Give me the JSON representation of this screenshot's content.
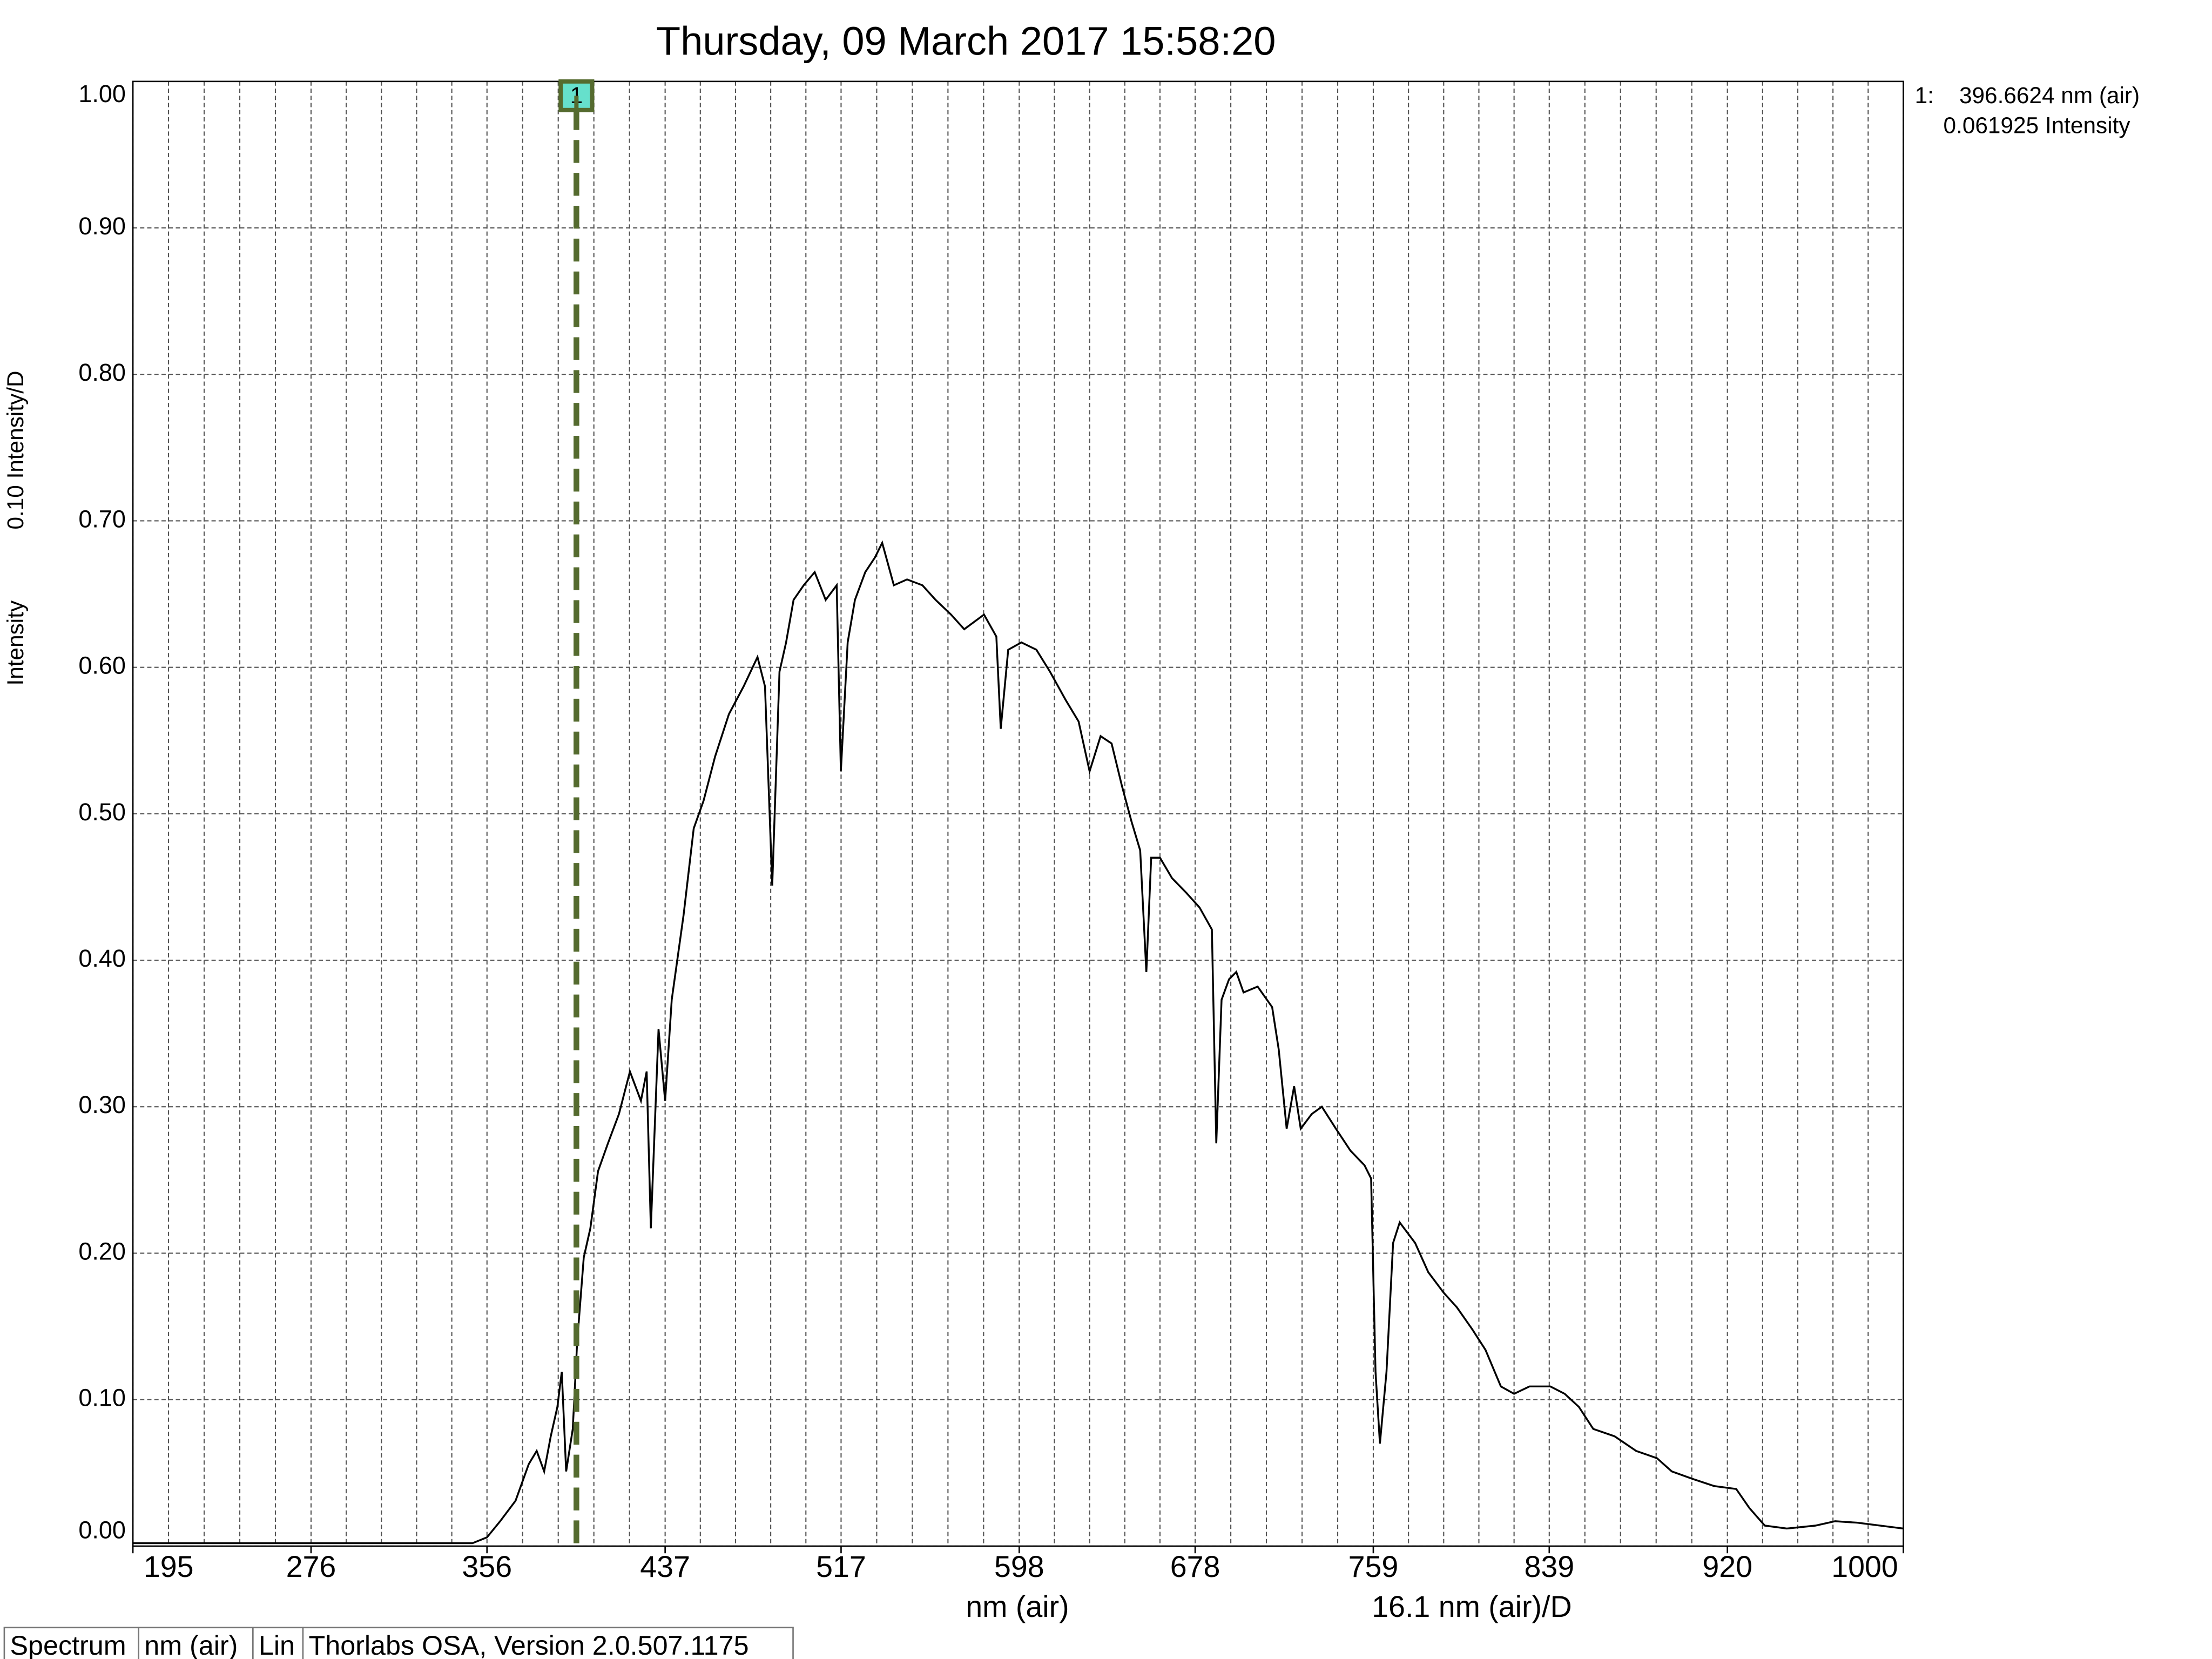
{
  "chart_data": {
    "type": "line",
    "title": "Thursday, 09 March 2017 15:58:20",
    "x_label": "nm (air)",
    "x_division_label": "16.1 nm (air)/D",
    "y_label": "Intensity",
    "y_division_label": "0.10 Intensity/D",
    "xlim": [
      195,
      1000
    ],
    "ylim": [
      0,
      1
    ],
    "xticks": [
      195,
      276,
      356,
      437,
      517,
      598,
      678,
      759,
      839,
      920,
      1000
    ],
    "yticks": [
      {
        "value": 0,
        "label": "0.00"
      },
      {
        "value": 0.1,
        "label": "0.10"
      },
      {
        "value": 0.2,
        "label": "0.20"
      },
      {
        "value": 0.3,
        "label": "0.30"
      },
      {
        "value": 0.4,
        "label": "0.40"
      },
      {
        "value": 0.5,
        "label": "0.50"
      },
      {
        "value": 0.6,
        "label": "0.60"
      },
      {
        "value": 0.7,
        "label": "0.70"
      },
      {
        "value": 0.8,
        "label": "0.80"
      },
      {
        "value": 0.9,
        "label": "0.90"
      },
      {
        "value": 1,
        "label": "1.00"
      }
    ],
    "grid": true,
    "x": [
      195,
      349.4,
      356,
      362,
      369,
      375,
      378.6,
      382,
      385,
      388,
      390,
      392,
      395,
      397,
      400,
      403,
      406.5,
      411,
      416,
      421,
      426,
      428.6,
      430.5,
      434,
      437,
      440,
      445.4,
      450,
      454.5,
      459.7,
      466,
      472.7,
      479,
      482.4,
      485.7,
      489,
      492,
      495.4,
      500,
      505,
      510,
      515,
      516.9,
      520,
      523.3,
      528,
      532.4,
      535.7,
      541,
      547,
      554,
      560,
      567,
      573,
      582,
      587.6,
      589.6,
      593,
      599,
      605.8,
      612,
      619,
      625,
      630,
      635,
      640,
      644.7,
      649,
      653,
      655.8,
      658,
      662,
      667.5,
      674,
      680,
      685.6,
      687.6,
      690,
      693.4,
      696.7,
      700,
      706.4,
      713,
      716,
      719.6,
      723,
      726,
      731,
      735.6,
      742,
      748.6,
      755,
      758,
      760,
      762,
      765,
      768,
      771,
      778,
      784,
      791,
      797,
      804,
      810,
      817,
      823,
      830,
      839.5,
      846,
      852.5,
      859,
      868.7,
      878.5,
      888,
      894.7,
      904,
      914,
      924,
      930,
      937,
      947,
      960,
      969,
      979,
      1000
    ],
    "series": [
      {
        "name": "Spectrum",
        "color": "#000000",
        "values": [
          0.002,
          0.002,
          0.006,
          0.017,
          0.031,
          0.056,
          0.065,
          0.051,
          0.075,
          0.095,
          0.119,
          0.051,
          0.08,
          0.139,
          0.197,
          0.217,
          0.256,
          0.275,
          0.295,
          0.324,
          0.304,
          0.324,
          0.217,
          0.353,
          0.304,
          0.373,
          0.431,
          0.49,
          0.509,
          0.539,
          0.568,
          0.587,
          0.607,
          0.587,
          0.451,
          0.597,
          0.617,
          0.646,
          0.656,
          0.665,
          0.646,
          0.656,
          0.529,
          0.617,
          0.646,
          0.665,
          0.675,
          0.685,
          0.656,
          0.66,
          0.656,
          0.646,
          0.636,
          0.626,
          0.636,
          0.621,
          0.558,
          0.612,
          0.617,
          0.612,
          0.597,
          0.578,
          0.563,
          0.529,
          0.553,
          0.548,
          0.519,
          0.495,
          0.475,
          0.392,
          0.47,
          0.47,
          0.456,
          0.446,
          0.436,
          0.421,
          0.275,
          0.373,
          0.387,
          0.392,
          0.378,
          0.382,
          0.368,
          0.339,
          0.285,
          0.314,
          0.285,
          0.295,
          0.3,
          0.285,
          0.27,
          0.26,
          0.251,
          0.119,
          0.07,
          0.119,
          0.207,
          0.221,
          0.207,
          0.187,
          0.173,
          0.163,
          0.148,
          0.134,
          0.109,
          0.104,
          0.109,
          0.109,
          0.104,
          0.095,
          0.08,
          0.075,
          0.065,
          0.06,
          0.051,
          0.046,
          0.041,
          0.039,
          0.026,
          0.014,
          0.012,
          0.014,
          0.017,
          0.016,
          0.012
        ]
      }
    ],
    "marker": {
      "x": 396.6624,
      "label": "1",
      "color": "#556b2f",
      "box_color": "#66e0cc",
      "readout": [
        "1:    396.6624 nm (air)",
        "0.061925 Intensity"
      ]
    },
    "status_bar": [
      "Spectrum",
      "nm (air)",
      "Lin",
      "Thorlabs OSA, Version 2.0.507.1175"
    ]
  }
}
